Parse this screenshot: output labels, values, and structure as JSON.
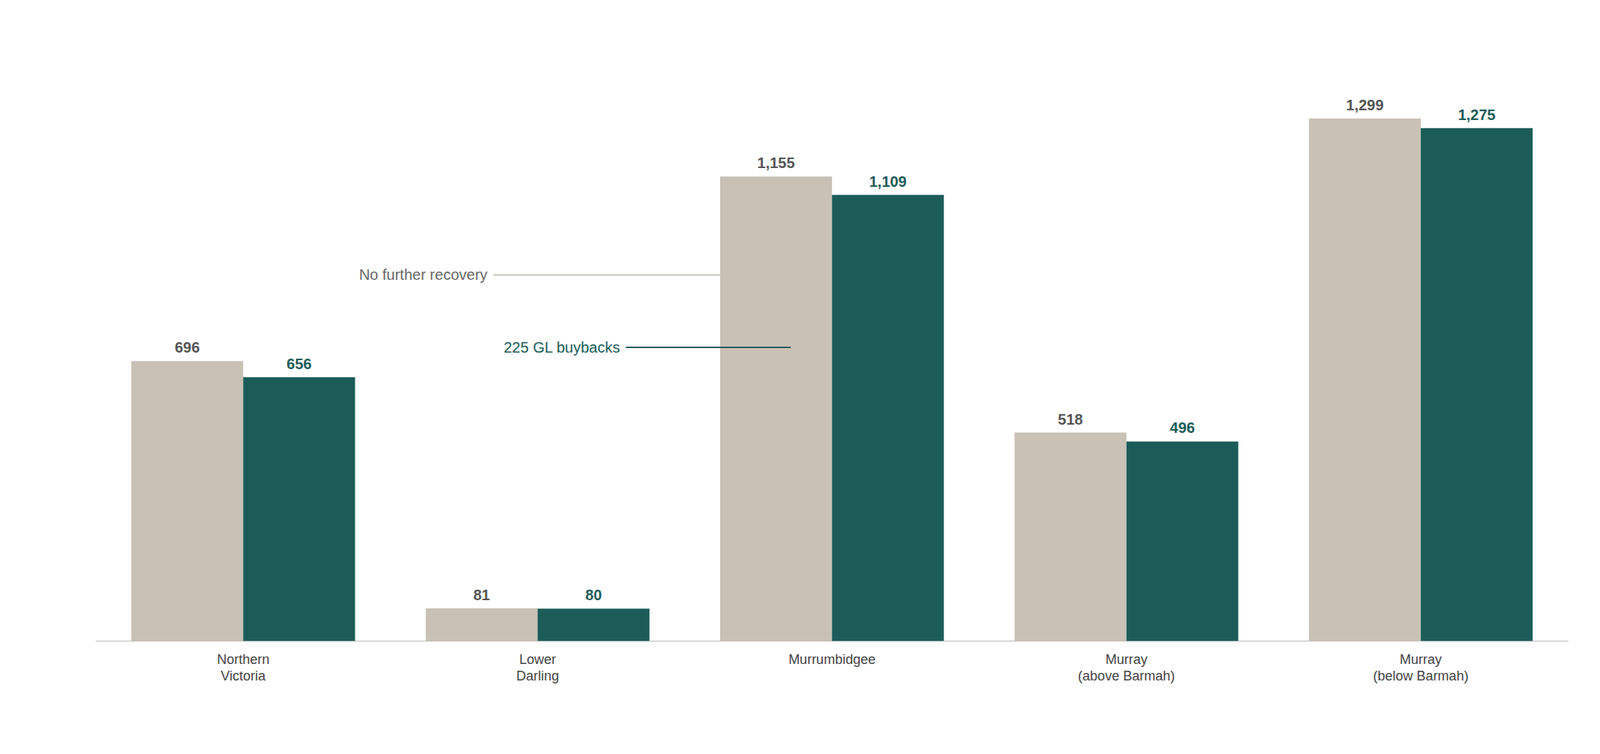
{
  "chart_data": {
    "type": "bar",
    "categories": [
      "Northern\nVictoria",
      "Lower\nDarling",
      "Murrumbidgee",
      "Murray\n(above Barmah)",
      "Murray\n(below Barmah)"
    ],
    "series": [
      {
        "name": "No further recovery",
        "color": "#c9c1b6",
        "values": [
          696,
          81,
          1155,
          518,
          1299
        ],
        "value_labels": [
          "696",
          "81",
          "1,155",
          "518",
          "1,299"
        ]
      },
      {
        "name": "225 GL buybacks",
        "color": "#1b5c59",
        "values": [
          656,
          80,
          1109,
          496,
          1275
        ],
        "value_labels": [
          "656",
          "80",
          "1,109",
          "496",
          "1,275"
        ]
      }
    ],
    "ylim": [
      0,
      1500
    ],
    "grid": false,
    "data_labels": true,
    "tick_labels": "x"
  }
}
